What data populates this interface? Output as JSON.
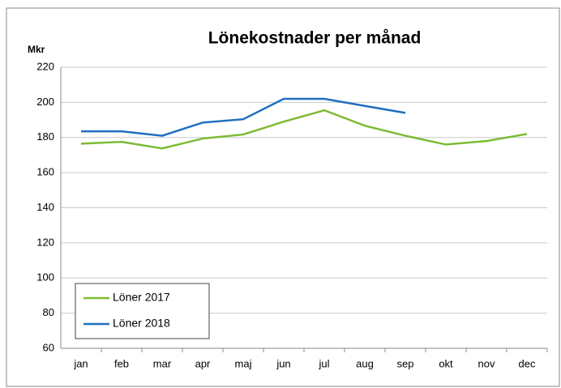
{
  "chart_data": {
    "type": "line",
    "title": "Lönekostnader  per månad",
    "y_label": "Mkr",
    "categories": [
      "jan",
      "feb",
      "mar",
      "apr",
      "maj",
      "jun",
      "jul",
      "aug",
      "sep",
      "okt",
      "nov",
      "dec"
    ],
    "series": [
      {
        "name": "Löner 2017",
        "color": "#7dbb34",
        "values": [
          176.5,
          177.5,
          173.8,
          179.4,
          181.7,
          189,
          195.5,
          186.7,
          181,
          176,
          178,
          182
        ]
      },
      {
        "name": "Löner 2018",
        "color": "#1f6fc0",
        "values": [
          183.5,
          183.5,
          181,
          188.5,
          190.4,
          202,
          202,
          198,
          194,
          null,
          null,
          null
        ]
      }
    ],
    "ylim": [
      60,
      220
    ],
    "yticks": [
      60,
      80,
      100,
      120,
      140,
      160,
      180,
      200,
      220
    ],
    "grid": true,
    "legend": "lower left"
  }
}
